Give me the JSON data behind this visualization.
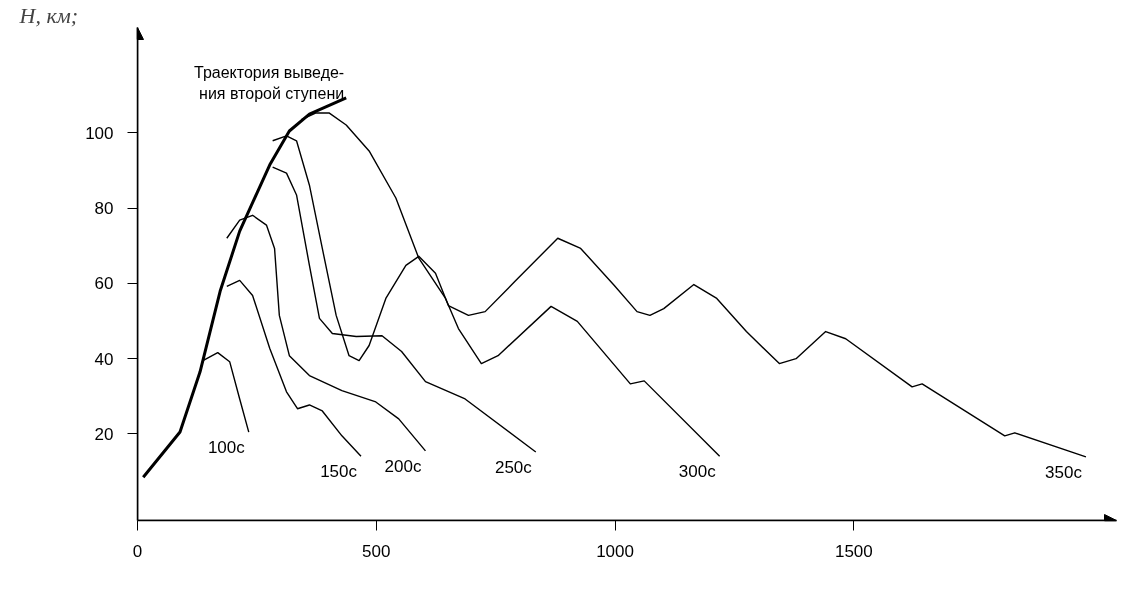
{
  "chart_data": {
    "type": "line",
    "ylabel": "H, км;",
    "xlim": [
      0,
      2050
    ],
    "ylim": [
      -3,
      128
    ],
    "xticks": [
      0,
      500,
      1000,
      1500
    ],
    "yticks": [
      20,
      40,
      60,
      80,
      100
    ],
    "grid": false,
    "marker": "none",
    "line_style": "solid",
    "series": [
      {
        "name": "Траектория выведе-\nния второй ступени",
        "color": "#000000",
        "x": [
          12,
          89,
          131,
          173,
          214,
          277,
          318,
          360,
          437
        ],
        "values": [
          8.5,
          20.5,
          36.5,
          57.9,
          73.9,
          91.5,
          100.5,
          105,
          109.3
        ]
      },
      {
        "name": "100с",
        "color": "#000000",
        "x": [
          137,
          168,
          193,
          214,
          233
        ],
        "values": [
          39.5,
          41.6,
          39.2,
          29.3,
          20.5
        ]
      },
      {
        "name": "150с",
        "color": "#000000",
        "x": [
          187,
          214,
          241,
          277,
          312,
          335,
          360,
          387,
          428,
          468
        ],
        "values": [
          59.2,
          60.8,
          56.8,
          42.7,
          31.2,
          26.7,
          27.7,
          26.1,
          19.5,
          14.1
        ]
      },
      {
        "name": "200с",
        "color": "#000000",
        "x": [
          187,
          214,
          241,
          270,
          287,
          297,
          318,
          360,
          428,
          499,
          547,
          603
        ],
        "values": [
          72,
          76.8,
          78.1,
          75.5,
          69.3,
          51.5,
          40.8,
          35.5,
          31.5,
          28.5,
          24,
          15.5
        ]
      },
      {
        "name": "250с",
        "color": "#000000",
        "x": [
          283,
          312,
          333,
          360,
          381,
          408,
          458,
          512,
          553,
          603,
          686,
          834
        ],
        "values": [
          90.9,
          89.3,
          83.5,
          64.8,
          50.7,
          46.7,
          45.9,
          46.1,
          41.9,
          33.9,
          29.3,
          15.2
        ]
      },
      {
        "name": "300с",
        "color": "#000000",
        "x": [
          343,
          374,
          401,
          437,
          485,
          541,
          589,
          645,
          672,
          720,
          755,
          866,
          921,
          1032,
          1061,
          1219
        ],
        "values": [
          103.5,
          105.3,
          105.3,
          102.1,
          95.2,
          82.7,
          66.7,
          56,
          48,
          38.7,
          40.8,
          53.9,
          49.9,
          33.3,
          34.1,
          14.1
        ]
      },
      {
        "name": "350с",
        "color": "#000000",
        "x": [
          283,
          312,
          333,
          360,
          387,
          416,
          443,
          464,
          485,
          520,
          562,
          589,
          624,
          651,
          693,
          728,
          790,
          880,
          928,
          998,
          1046,
          1073,
          1102,
          1165,
          1213,
          1275,
          1344,
          1379,
          1441,
          1483,
          1622,
          1643,
          1816,
          1837,
          1986
        ],
        "values": [
          97.9,
          99.2,
          97.9,
          86.1,
          69.3,
          51.5,
          40.8,
          39.5,
          43.5,
          56,
          64.8,
          67.2,
          62.7,
          54.1,
          51.5,
          52.5,
          60.5,
          72,
          69.3,
          59.5,
          52.5,
          51.5,
          53.3,
          59.7,
          56,
          47.2,
          38.7,
          40,
          47.2,
          45.3,
          32.5,
          33.3,
          19.5,
          20.3,
          13.9
        ]
      }
    ]
  }
}
